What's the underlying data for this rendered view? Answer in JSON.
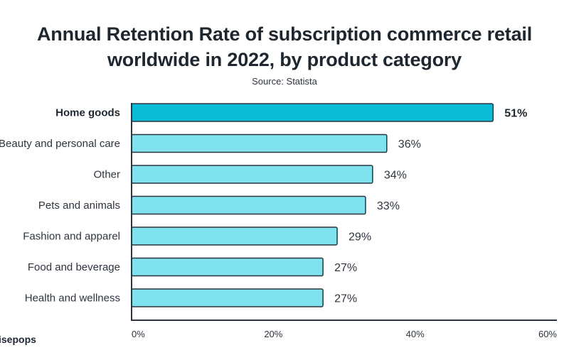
{
  "chart_data": {
    "type": "bar",
    "orientation": "horizontal",
    "title": "Annual Retention Rate of subscription commerce retail worldwide in 2022, by product category",
    "title_lines": [
      "Annual Retention Rate of subscription commerce retail",
      "worldwide in 2022, by product category"
    ],
    "subtitle": "Source: Statista",
    "xlabel": "",
    "ylabel": "",
    "xlim": [
      0,
      60
    ],
    "x_ticks": [
      0,
      20,
      40,
      60
    ],
    "x_tick_labels": [
      "0%",
      "20%",
      "40%",
      "60%"
    ],
    "grid": false,
    "categories": [
      "Home goods",
      "Beauty and personal care",
      "Other",
      "Pets and animals",
      "Fashion and apparel",
      "Food and beverage",
      "Health and wellness"
    ],
    "values": [
      51,
      36,
      34,
      33,
      29,
      27,
      27
    ],
    "data_labels": [
      "51%",
      "36%",
      "34%",
      "33%",
      "29%",
      "27%",
      "27%"
    ],
    "highlighted": [
      "Home goods"
    ],
    "colors": {
      "highlight": "#0bbcd6",
      "default": "#80e1ef",
      "outline": "#2b3440"
    },
    "legend": null
  },
  "brand": "isepops"
}
